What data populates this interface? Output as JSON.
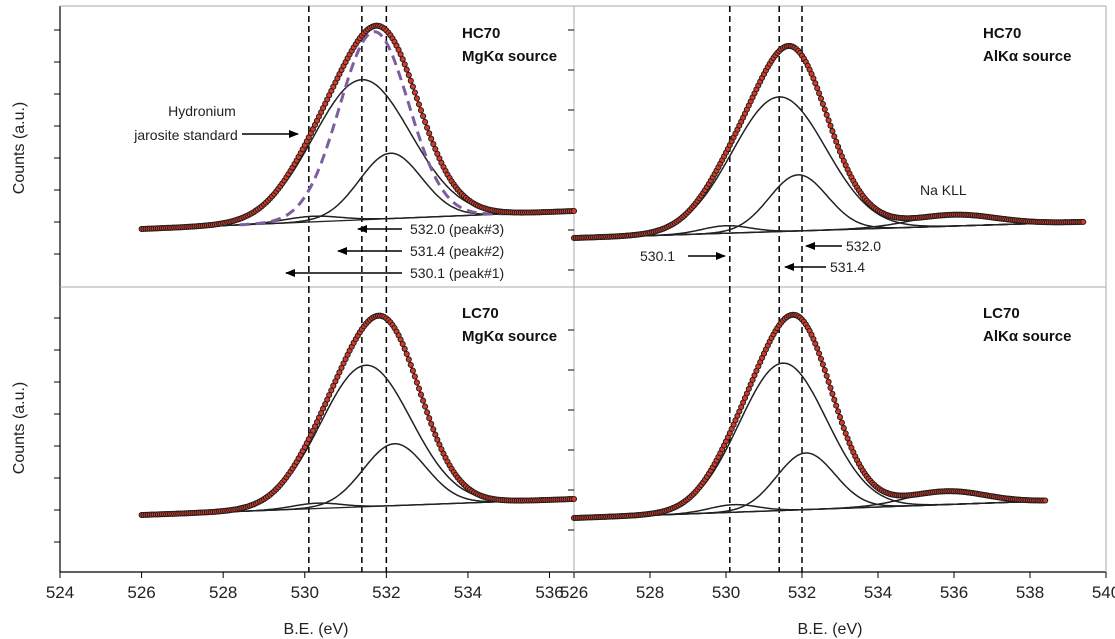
{
  "chart_data": [
    {
      "type": "line",
      "panel_title": [
        "HC70",
        "MgKα source"
      ],
      "xlabel": "",
      "ylabel": "Counts (a.u.)",
      "xlim": [
        524,
        536.6
      ],
      "y_units": "arbitrary",
      "ref_lines": [
        530.1,
        531.4,
        532.0
      ],
      "components": [
        {
          "center": 531.4,
          "fwhm": 2.8,
          "height": 0.75
        },
        {
          "center": 532.1,
          "fwhm": 1.8,
          "height": 0.35
        },
        {
          "center": 530.2,
          "fwhm": 1.6,
          "height": 0.03
        }
      ],
      "reference_curve": {
        "label": "Hydronium jarosite standard",
        "center": 531.7,
        "fwhm": 2.0,
        "height": 1.0
      },
      "annotations": [
        {
          "text": "Hydronium",
          "x": 530.1
        },
        {
          "text": "jarosite standard",
          "x": 530.1
        },
        {
          "text": "532.0 (peak#3)",
          "x": 532.0
        },
        {
          "text": "531.4 (peak#2)",
          "x": 531.4
        },
        {
          "text": "530.1 (peak#1)",
          "x": 530.1
        }
      ]
    },
    {
      "type": "line",
      "panel_title": [
        "HC70",
        "AlKα source"
      ],
      "xlabel": "",
      "ylabel": "",
      "xlim": [
        526,
        540
      ],
      "y_units": "arbitrary",
      "ref_lines": [
        530.1,
        531.4,
        532.0
      ],
      "components": [
        {
          "center": 531.4,
          "fwhm": 2.9,
          "height": 0.72
        },
        {
          "center": 531.9,
          "fwhm": 1.8,
          "height": 0.3
        },
        {
          "center": 530.0,
          "fwhm": 1.5,
          "height": 0.04
        },
        {
          "center": 536.0,
          "fwhm": 2.6,
          "height": 0.06
        }
      ],
      "annotations": [
        {
          "text": "Na KLL",
          "x": 535.3
        },
        {
          "text": "532.0",
          "x": 532.0
        },
        {
          "text": "530.1",
          "x": 530.1
        },
        {
          "text": "531.4",
          "x": 531.4
        }
      ]
    },
    {
      "type": "line",
      "panel_title": [
        "LC70",
        "MgKα source"
      ],
      "xlabel": "B.E. (eV)",
      "ylabel": "Counts (a.u.)",
      "xlim": [
        524,
        536.6
      ],
      "x_ticks": [
        524,
        526,
        528,
        530,
        532,
        534,
        536
      ],
      "y_units": "arbitrary",
      "ref_lines": [
        530.1,
        531.4,
        532.0
      ],
      "components": [
        {
          "center": 531.5,
          "fwhm": 2.6,
          "height": 0.8
        },
        {
          "center": 532.2,
          "fwhm": 1.8,
          "height": 0.35
        },
        {
          "center": 530.3,
          "fwhm": 1.4,
          "height": 0.03
        }
      ]
    },
    {
      "type": "line",
      "panel_title": [
        "LC70",
        "AlKα source"
      ],
      "xlabel": "B.E. (eV)",
      "ylabel": "",
      "xlim": [
        526,
        540
      ],
      "x_ticks": [
        526,
        528,
        530,
        532,
        534,
        536,
        538,
        540
      ],
      "y_units": "arbitrary",
      "ref_lines": [
        530.1,
        531.4,
        532.0
      ],
      "components": [
        {
          "center": 531.5,
          "fwhm": 2.7,
          "height": 0.78
        },
        {
          "center": 532.1,
          "fwhm": 1.8,
          "height": 0.3
        },
        {
          "center": 530.2,
          "fwhm": 1.5,
          "height": 0.04
        },
        {
          "center": 535.8,
          "fwhm": 2.4,
          "height": 0.07
        }
      ]
    }
  ]
}
